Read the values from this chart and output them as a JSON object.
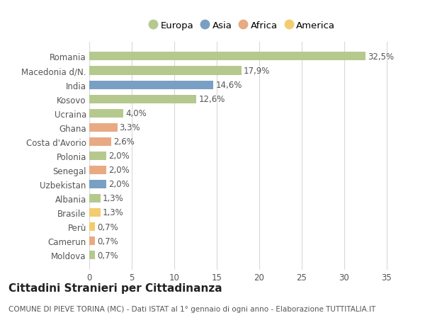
{
  "categories": [
    "Romania",
    "Macedonia d/N.",
    "India",
    "Kosovo",
    "Ucraina",
    "Ghana",
    "Costa d'Avorio",
    "Polonia",
    "Senegal",
    "Uzbekistan",
    "Albania",
    "Brasile",
    "Perù",
    "Camerun",
    "Moldova"
  ],
  "values": [
    32.5,
    17.9,
    14.6,
    12.6,
    4.0,
    3.3,
    2.6,
    2.0,
    2.0,
    2.0,
    1.3,
    1.3,
    0.7,
    0.7,
    0.7
  ],
  "labels": [
    "32,5%",
    "17,9%",
    "14,6%",
    "12,6%",
    "4,0%",
    "3,3%",
    "2,6%",
    "2,0%",
    "2,0%",
    "2,0%",
    "1,3%",
    "1,3%",
    "0,7%",
    "0,7%",
    "0,7%"
  ],
  "continents": [
    "Europa",
    "Europa",
    "Asia",
    "Europa",
    "Europa",
    "Africa",
    "Africa",
    "Europa",
    "Africa",
    "Asia",
    "Europa",
    "America",
    "America",
    "Africa",
    "Europa"
  ],
  "colors": {
    "Europa": "#b5c98e",
    "Asia": "#7a9fc4",
    "Africa": "#e8aa82",
    "America": "#f2cc6e"
  },
  "legend_order": [
    "Europa",
    "Asia",
    "Africa",
    "America"
  ],
  "title": "Cittadini Stranieri per Cittadinanza",
  "subtitle": "COMUNE DI PIEVE TORINA (MC) - Dati ISTAT al 1° gennaio di ogni anno - Elaborazione TUTTITALIA.IT",
  "xlim": [
    0,
    36
  ],
  "xticks": [
    0,
    5,
    10,
    15,
    20,
    25,
    30,
    35
  ],
  "background_color": "#ffffff",
  "plot_bg_color": "#ffffff",
  "grid_color": "#d8d8d8",
  "bar_height": 0.6,
  "title_fontsize": 11,
  "subtitle_fontsize": 7.5,
  "tick_fontsize": 8.5,
  "label_fontsize": 8.5,
  "legend_fontsize": 9.5
}
